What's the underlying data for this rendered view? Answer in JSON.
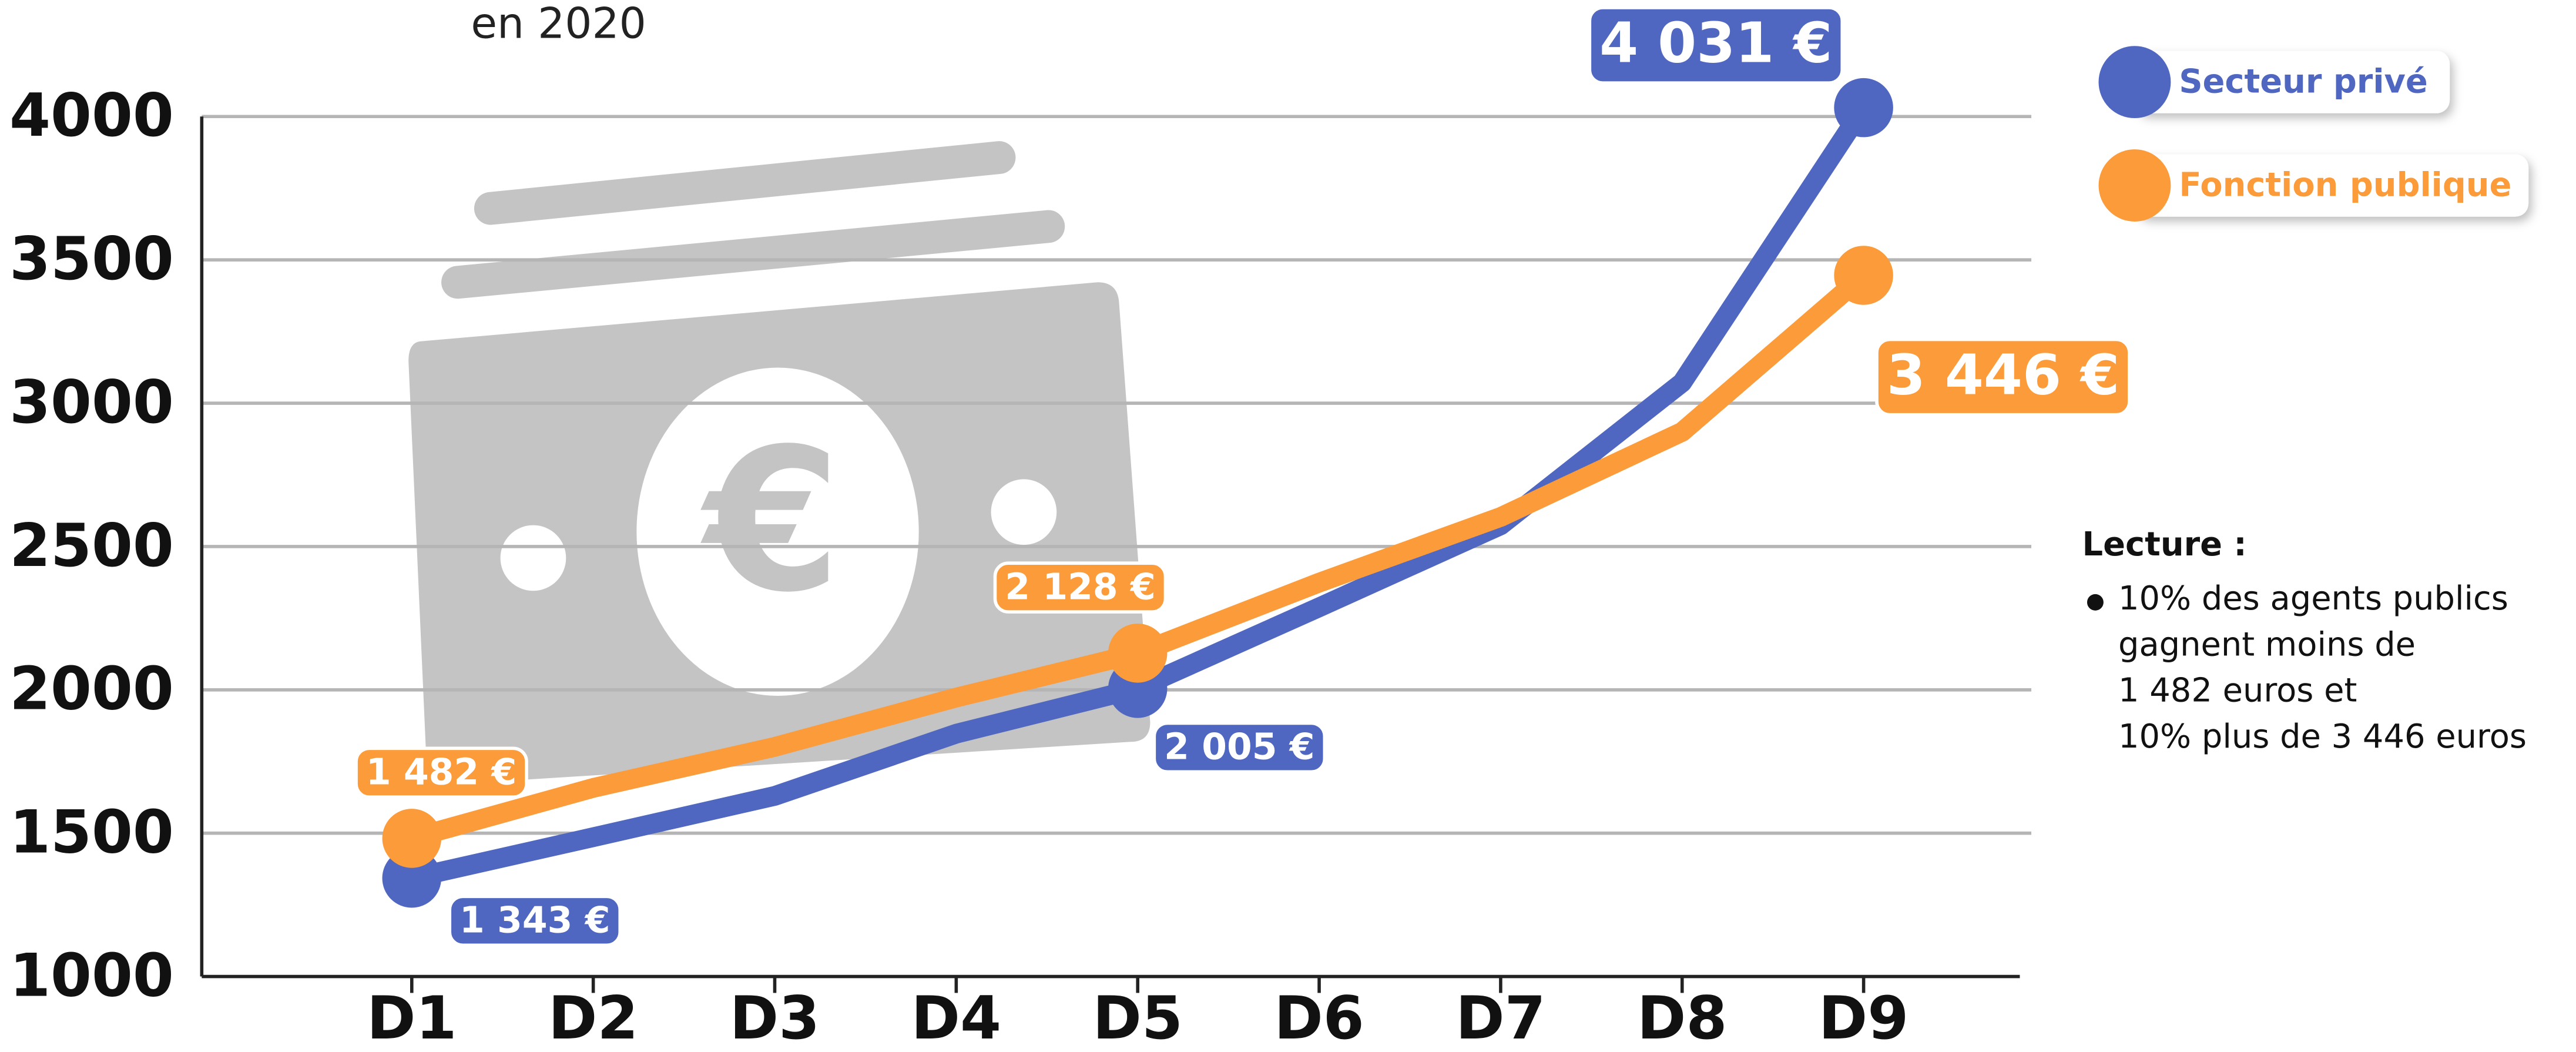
{
  "chart_data": {
    "type": "line",
    "subtitle": "en 2020",
    "categories": [
      "D1",
      "D2",
      "D3",
      "D4",
      "D5",
      "D6",
      "D7",
      "D8",
      "D9"
    ],
    "series": [
      {
        "name": "Secteur privé",
        "color": "#4f67c0",
        "values": [
          1343,
          1486,
          1630,
          1847,
          2005,
          2288,
          2574,
          3072,
          4031
        ],
        "value_labels": [
          "1 343 €",
          null,
          null,
          null,
          "2 005 €",
          null,
          null,
          null,
          "4 031 €"
        ]
      },
      {
        "name": "Fonction publique",
        "color": "#fb9b3a",
        "values": [
          1482,
          1658,
          1801,
          1973,
          2128,
          2374,
          2603,
          2900,
          3446
        ],
        "value_labels": [
          "1 482 €",
          null,
          null,
          null,
          "2 128 €",
          null,
          null,
          null,
          "3 446 €"
        ]
      }
    ],
    "ylim": [
      1000,
      4000
    ],
    "yticks": [
      1000,
      1500,
      2000,
      2500,
      3000,
      3500,
      4000
    ],
    "grid": true,
    "legend": "top-right",
    "annotation": {
      "title": "Lecture :",
      "lines": [
        "10% des agents publics",
        "gagnent moins de",
        "1 482 euros et",
        "10% plus de 3 446 euros"
      ]
    }
  }
}
